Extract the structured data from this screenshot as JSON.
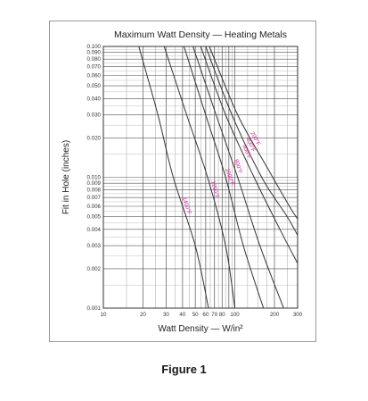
{
  "caption": "Figure 1",
  "chart_data": {
    "type": "line",
    "title": "Maximum Watt Density — Heating Metals",
    "xlabel": "Watt Density — W/in²",
    "ylabel": "Fit in Hole (inches)",
    "xscale": "log",
    "yscale": "log",
    "xlim": [
      10,
      300
    ],
    "ylim": [
      0.001,
      0.1
    ],
    "grid": true,
    "x_tick_labels": [
      {
        "value": 10,
        "label": "10"
      },
      {
        "value": 20,
        "label": "20"
      },
      {
        "value": 30,
        "label": "30"
      },
      {
        "value": 40,
        "label": "40"
      },
      {
        "value": 50,
        "label": "50"
      },
      {
        "value": 60,
        "label": "60"
      },
      {
        "value": 70,
        "label": "70"
      },
      {
        "value": 80,
        "label": "80"
      },
      {
        "value": 100,
        "label": "100"
      },
      {
        "value": 200,
        "label": "200"
      },
      {
        "value": 300,
        "label": "300"
      }
    ],
    "y_tick_labels": [
      {
        "value": 0.1,
        "label": "0.100"
      },
      {
        "value": 0.09,
        "label": "0.090"
      },
      {
        "value": 0.08,
        "label": "0.080"
      },
      {
        "value": 0.07,
        "label": "0.070"
      },
      {
        "value": 0.06,
        "label": "0.060"
      },
      {
        "value": 0.05,
        "label": "0.050"
      },
      {
        "value": 0.04,
        "label": "0.040"
      },
      {
        "value": 0.03,
        "label": "0.030"
      },
      {
        "value": 0.02,
        "label": "0.020"
      },
      {
        "value": 0.01,
        "label": "0.010"
      },
      {
        "value": 0.009,
        "label": "0.009"
      },
      {
        "value": 0.008,
        "label": "0.008"
      },
      {
        "value": 0.007,
        "label": "0.007"
      },
      {
        "value": 0.006,
        "label": "0.006"
      },
      {
        "value": 0.005,
        "label": "0.005"
      },
      {
        "value": 0.004,
        "label": "0.004"
      },
      {
        "value": 0.003,
        "label": "0.003"
      },
      {
        "value": 0.002,
        "label": "0.002"
      },
      {
        "value": 0.001,
        "label": "0.001"
      }
    ],
    "series": [
      {
        "name": "1400°F",
        "points": [
          [
            18.6,
            0.1
          ],
          [
            26,
            0.03
          ],
          [
            34,
            0.01
          ],
          [
            50,
            0.003
          ],
          [
            63,
            0.001
          ]
        ]
      },
      {
        "name": "1200°F",
        "points": [
          [
            29,
            0.1
          ],
          [
            43,
            0.03
          ],
          [
            62,
            0.01
          ],
          [
            85,
            0.003
          ],
          [
            100,
            0.001
          ]
        ]
      },
      {
        "name": "1000°F",
        "points": [
          [
            41,
            0.1
          ],
          [
            60,
            0.03
          ],
          [
            85,
            0.01
          ],
          [
            116,
            0.003
          ],
          [
            165,
            0.001
          ]
        ]
      },
      {
        "name": "800°F",
        "points": [
          [
            48,
            0.1
          ],
          [
            72,
            0.03
          ],
          [
            105,
            0.01
          ],
          [
            155,
            0.003
          ],
          [
            235,
            0.001
          ]
        ]
      },
      {
        "name": "600°F",
        "points": [
          [
            55,
            0.1
          ],
          [
            85,
            0.03
          ],
          [
            140,
            0.01
          ],
          [
            220,
            0.004
          ],
          [
            300,
            0.0022
          ]
        ]
      },
      {
        "name": "400°F",
        "points": [
          [
            60,
            0.1
          ],
          [
            95,
            0.03
          ],
          [
            160,
            0.01
          ],
          [
            250,
            0.005
          ],
          [
            300,
            0.0036
          ]
        ]
      },
      {
        "name": "200°F",
        "points": [
          [
            64,
            0.1
          ],
          [
            105,
            0.03
          ],
          [
            175,
            0.012
          ],
          [
            260,
            0.006
          ],
          [
            300,
            0.0048
          ]
        ]
      }
    ],
    "line_color": "#333333",
    "label_color": "#d21f8e"
  }
}
